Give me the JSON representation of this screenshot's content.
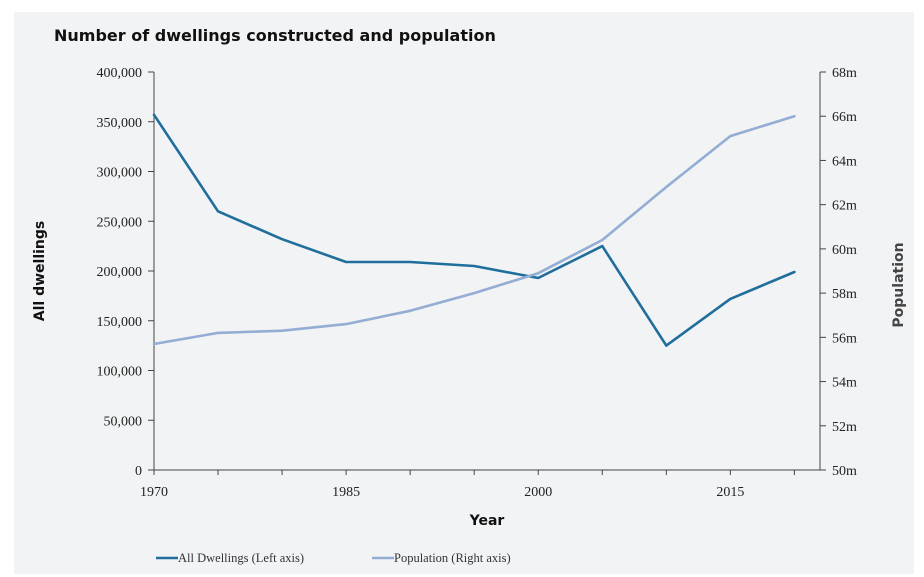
{
  "chart_data": {
    "type": "line",
    "title": "Number of dwellings constructed and population",
    "xlabel": "Year",
    "ylabel_left": "All dwellings",
    "ylabel_right": "Population",
    "x": [
      1970,
      1975,
      1980,
      1985,
      1990,
      1995,
      2000,
      2005,
      2010,
      2015,
      2020
    ],
    "x_tick_labels": [
      "1970",
      "1985",
      "2000",
      "2015"
    ],
    "x_ticks": [
      1970,
      1985,
      2000,
      2015
    ],
    "xlim": [
      1970,
      2022
    ],
    "left_axis": {
      "ylim": [
        0,
        400000
      ],
      "tick_values": [
        0,
        50000,
        100000,
        150000,
        200000,
        250000,
        300000,
        350000,
        400000
      ],
      "tick_labels": [
        "0",
        "50,000",
        "100,000",
        "150,000",
        "200,000",
        "250,000",
        "300,000",
        "350,000",
        "400,000"
      ]
    },
    "right_axis": {
      "ylim": [
        50,
        68
      ],
      "tick_values": [
        50,
        52,
        54,
        56,
        58,
        60,
        62,
        64,
        66,
        68
      ],
      "tick_labels": [
        "50m",
        "52m",
        "54m",
        "56m",
        "58m",
        "60m",
        "62m",
        "64m",
        "66m",
        "68m"
      ]
    },
    "series": [
      {
        "name": "All Dwellings (Left axis)",
        "axis": "left",
        "color": "#1f6e9c",
        "values": [
          357000,
          260000,
          232000,
          209000,
          209000,
          205000,
          193000,
          225000,
          125000,
          172000,
          199000
        ]
      },
      {
        "name": "Population (Right axis)",
        "axis": "right",
        "color": "#93add3",
        "values": [
          55.7,
          56.2,
          56.3,
          56.6,
          57.2,
          58.0,
          58.9,
          60.4,
          62.8,
          65.1,
          66.0
        ]
      }
    ],
    "legend_position": "bottom-left",
    "grid": false
  }
}
